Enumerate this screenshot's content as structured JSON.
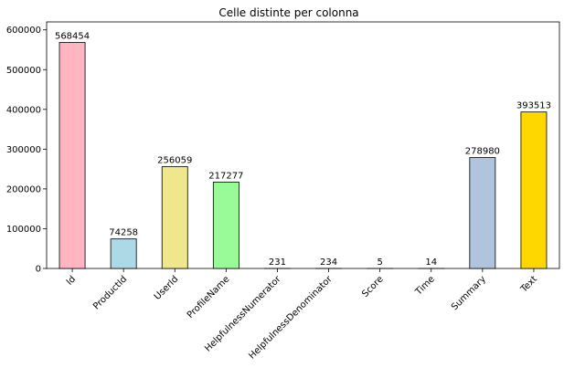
{
  "chart_data": {
    "type": "bar",
    "title": "Celle distinte per colonna",
    "xlabel": "",
    "ylabel": "",
    "categories": [
      "Id",
      "ProductId",
      "UserId",
      "ProfileName",
      "HelpfulnessNumerator",
      "HelpfulnessDenominator",
      "Score",
      "Time",
      "Summary",
      "Text"
    ],
    "values": [
      568454,
      74258,
      256059,
      217277,
      231,
      234,
      5,
      14,
      278980,
      393513
    ],
    "colors": [
      "#ffb6c1",
      "#add8e6",
      "#f0e68c",
      "#98fb98",
      "#ffb6c1",
      "#add8e6",
      "#f0e68c",
      "#98fb98",
      "#b0c4de",
      "#ffd700"
    ],
    "edge_color": "#000000",
    "ylim": [
      0,
      620000
    ],
    "yticks": [
      0,
      100000,
      200000,
      300000,
      400000,
      500000,
      600000
    ],
    "grid": false,
    "legend": false
  }
}
